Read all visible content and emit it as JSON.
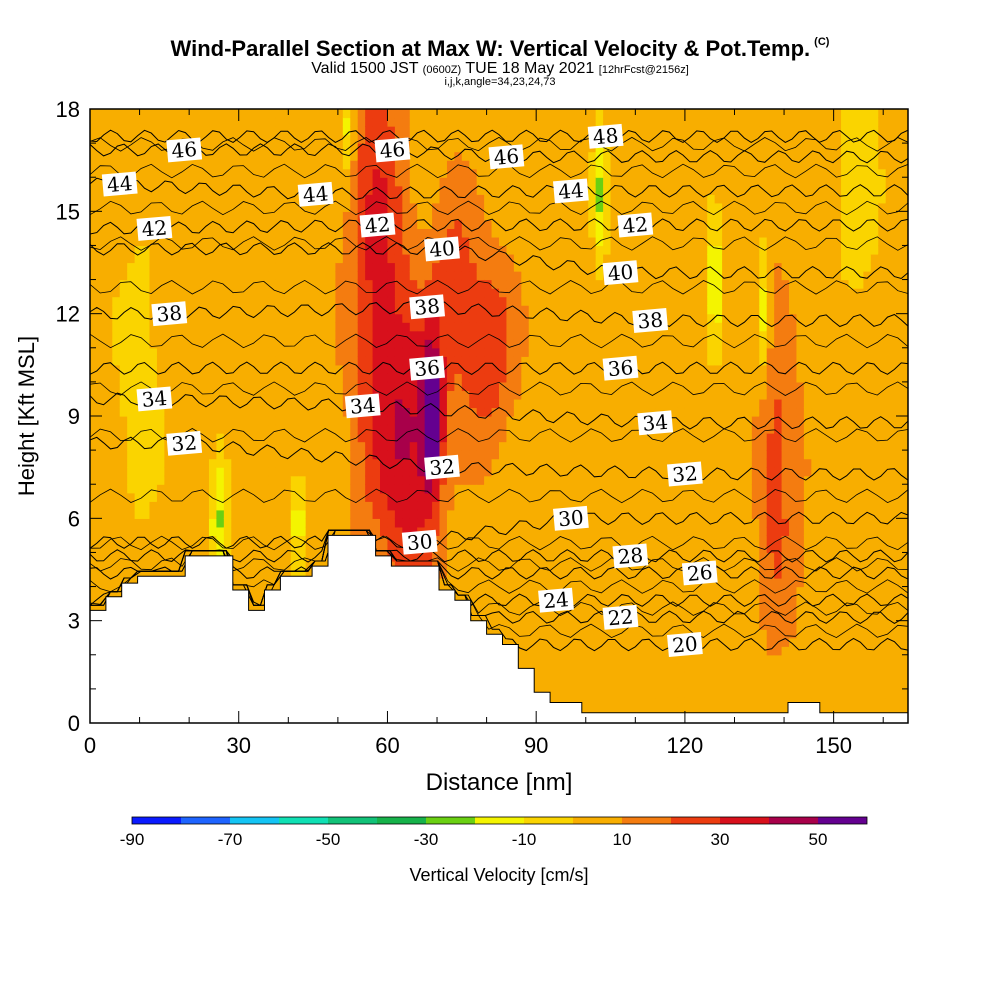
{
  "titles": {
    "main": "Wind-Parallel Section at Max W: Vertical Velocity & Pot.Temp.",
    "copyright": "(C)",
    "valid_prefix": "Valid 1500 JST",
    "valid_z": "(0600Z)",
    "valid_date": "TUE 18 May 2021",
    "fcst": "[12hrFcst@2156z]",
    "indices": "i,j,k,angle=34,23,24,73"
  },
  "chart_data": {
    "type": "heatmap",
    "xlabel": "Distance [nm]",
    "ylabel": "Height [Kft MSL]",
    "xlim": [
      0,
      165
    ],
    "ylim": [
      0,
      18
    ],
    "x_ticks": [
      0,
      30,
      60,
      90,
      120,
      150
    ],
    "y_ticks": [
      0,
      3,
      6,
      9,
      12,
      15,
      18
    ],
    "colorbar": {
      "label": "Vertical Velocity [cm/s]",
      "tick_labels": [
        -90,
        -70,
        -50,
        -30,
        -10,
        10,
        30,
        50
      ],
      "bins": [
        -90,
        -80,
        -70,
        -60,
        -50,
        -40,
        -30,
        -20,
        -10,
        0,
        10,
        20,
        30,
        40,
        50,
        60
      ],
      "colors": [
        "#0a1aff",
        "#1e64ff",
        "#14c4f4",
        "#10e0b4",
        "#12c278",
        "#16b24a",
        "#6ad012",
        "#f4f400",
        "#fad400",
        "#f8ae00",
        "#f47c10",
        "#ec3c10",
        "#d8101c",
        "#a8004a",
        "#640090"
      ]
    },
    "background_w": 5,
    "w_features": [
      {
        "x": 58,
        "y": 13,
        "sx": 4,
        "sy": 5,
        "w": 28
      },
      {
        "x": 65,
        "y": 8,
        "sx": 4,
        "sy": 3,
        "w": 32
      },
      {
        "x": 69,
        "y": 9,
        "sx": 1.5,
        "sy": 1.5,
        "w": 50
      },
      {
        "x": 80,
        "y": 11,
        "sx": 4,
        "sy": 2,
        "w": 24
      },
      {
        "x": 73,
        "y": 13,
        "sx": 3,
        "sy": 2,
        "w": 18
      },
      {
        "x": 140,
        "y": 7,
        "sx": 3,
        "sy": 3,
        "w": 14
      },
      {
        "x": 137,
        "y": 9,
        "sx": 2,
        "sy": 4,
        "w": 10
      },
      {
        "x": 26,
        "y": 6,
        "sx": 1.2,
        "sy": 1.5,
        "w": -26
      },
      {
        "x": 103,
        "y": 15.5,
        "sx": 1,
        "sy": 1.5,
        "w": -24
      },
      {
        "x": 126,
        "y": 13,
        "sx": 1,
        "sy": 1.5,
        "w": -26
      },
      {
        "x": 136,
        "y": 12,
        "sx": 1,
        "sy": 1.5,
        "w": -26
      },
      {
        "x": 52,
        "y": 17.5,
        "sx": 1,
        "sy": 1,
        "w": -22
      },
      {
        "x": 42,
        "y": 6,
        "sx": 1,
        "sy": 1,
        "w": -22
      },
      {
        "x": 10,
        "y": 10,
        "sx": 3,
        "sy": 3,
        "w": -12
      },
      {
        "x": 155,
        "y": 16,
        "sx": 3,
        "sy": 3,
        "w": -12
      }
    ],
    "terrain": [
      [
        0,
        3.3
      ],
      [
        3.2,
        3.3
      ],
      [
        3.2,
        3.7
      ],
      [
        6.4,
        3.7
      ],
      [
        6.4,
        4.1
      ],
      [
        9.6,
        4.1
      ],
      [
        9.6,
        4.3
      ],
      [
        19.2,
        4.3
      ],
      [
        19.2,
        4.9
      ],
      [
        28.8,
        4.9
      ],
      [
        28.8,
        3.9
      ],
      [
        32,
        3.9
      ],
      [
        32,
        3.3
      ],
      [
        35.2,
        3.3
      ],
      [
        35.2,
        3.9
      ],
      [
        38.4,
        3.9
      ],
      [
        38.4,
        4.3
      ],
      [
        44.8,
        4.3
      ],
      [
        44.8,
        4.6
      ],
      [
        48,
        4.6
      ],
      [
        48,
        5.5
      ],
      [
        57.6,
        5.5
      ],
      [
        57.6,
        4.9
      ],
      [
        60.8,
        4.9
      ],
      [
        60.8,
        4.6
      ],
      [
        70.4,
        4.6
      ],
      [
        70.4,
        3.9
      ],
      [
        73.6,
        3.9
      ],
      [
        73.6,
        3.6
      ],
      [
        76.8,
        3.6
      ],
      [
        76.8,
        3.0
      ],
      [
        80,
        3.0
      ],
      [
        80,
        2.6
      ],
      [
        83.2,
        2.6
      ],
      [
        83.2,
        2.3
      ],
      [
        86.4,
        2.3
      ],
      [
        86.4,
        1.6
      ],
      [
        89.6,
        1.6
      ],
      [
        89.6,
        0.9
      ],
      [
        92.8,
        0.9
      ],
      [
        92.8,
        0.6
      ],
      [
        99.2,
        0.6
      ],
      [
        99.2,
        0.3
      ],
      [
        140.8,
        0.3
      ],
      [
        140.8,
        0.6
      ],
      [
        147.2,
        0.6
      ],
      [
        147.2,
        0.3
      ],
      [
        165,
        0.3
      ]
    ],
    "contour_labels": [
      {
        "value": "46",
        "x": 19,
        "y": 16.8
      },
      {
        "value": "46",
        "x": 61,
        "y": 16.8
      },
      {
        "value": "46",
        "x": 84,
        "y": 16.6
      },
      {
        "value": "48",
        "x": 104,
        "y": 17.2
      },
      {
        "value": "44",
        "x": 6,
        "y": 15.8
      },
      {
        "value": "44",
        "x": 45.5,
        "y": 15.5
      },
      {
        "value": "44",
        "x": 97,
        "y": 15.6
      },
      {
        "value": "42",
        "x": 13,
        "y": 14.5
      },
      {
        "value": "42",
        "x": 58,
        "y": 14.6
      },
      {
        "value": "42",
        "x": 110,
        "y": 14.6
      },
      {
        "value": "40",
        "x": 71,
        "y": 13.9
      },
      {
        "value": "40",
        "x": 107,
        "y": 13.2
      },
      {
        "value": "38",
        "x": 16,
        "y": 12.0
      },
      {
        "value": "38",
        "x": 68,
        "y": 12.2
      },
      {
        "value": "38",
        "x": 113,
        "y": 11.8
      },
      {
        "value": "36",
        "x": 68,
        "y": 10.4
      },
      {
        "value": "36",
        "x": 107,
        "y": 10.4
      },
      {
        "value": "34",
        "x": 13,
        "y": 9.5
      },
      {
        "value": "34",
        "x": 55,
        "y": 9.3
      },
      {
        "value": "34",
        "x": 114,
        "y": 8.8
      },
      {
        "value": "32",
        "x": 19,
        "y": 8.2
      },
      {
        "value": "32",
        "x": 71,
        "y": 7.5
      },
      {
        "value": "32",
        "x": 120,
        "y": 7.3
      },
      {
        "value": "30",
        "x": 97,
        "y": 6.0
      },
      {
        "value": "30",
        "x": 66.5,
        "y": 5.3
      },
      {
        "value": "28",
        "x": 109,
        "y": 4.9
      },
      {
        "value": "26",
        "x": 123,
        "y": 4.4
      },
      {
        "value": "24",
        "x": 94,
        "y": 3.6
      },
      {
        "value": "22",
        "x": 107,
        "y": 3.1
      },
      {
        "value": "20",
        "x": 120,
        "y": 2.3
      }
    ]
  }
}
